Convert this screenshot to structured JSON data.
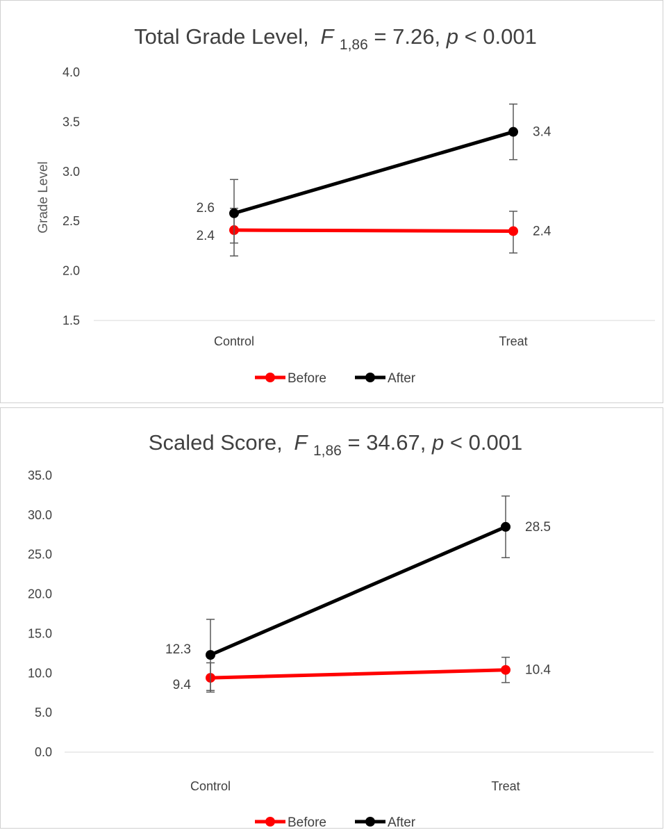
{
  "chart_data": [
    {
      "type": "line",
      "title": "Total Grade Level,",
      "title_stat_symbol": "F",
      "title_stat_subscript": "1,86",
      "title_stat_value": " = 7.26, ",
      "title_p_symbol": "p",
      "title_p_value": " < 0.001",
      "xlabel": "",
      "ylabel": "Grade Level",
      "categories": [
        "Control",
        "Treat"
      ],
      "ylim": [
        1.5,
        4.0
      ],
      "yticks": [
        "1.5",
        "2.0",
        "2.5",
        "3.0",
        "3.5",
        "4.0"
      ],
      "series": [
        {
          "name": "Before",
          "color": "#ff0000",
          "values": [
            2.41,
            2.4
          ],
          "error_low": [
            2.15,
            2.18
          ],
          "error_high": [
            2.63,
            2.6
          ],
          "labels": [
            "2.4",
            "2.4"
          ]
        },
        {
          "name": "After",
          "color": "#000000",
          "values": [
            2.58,
            3.4
          ],
          "error_low": [
            2.28,
            3.12
          ],
          "error_high": [
            2.92,
            3.68
          ],
          "labels": [
            "2.6",
            "3.4"
          ]
        }
      ],
      "grid": false,
      "legend_position": "bottom"
    },
    {
      "type": "line",
      "title": "Scaled Score,",
      "title_stat_symbol": "F",
      "title_stat_subscript": "1,86",
      "title_stat_value": "= 34.67, ",
      "title_p_symbol": "p",
      "title_p_value": " < 0.001",
      "xlabel": "",
      "ylabel": "",
      "categories": [
        "Control",
        "Treat"
      ],
      "ylim": [
        0,
        35
      ],
      "yticks": [
        "0.0",
        "5.0",
        "10.0",
        "15.0",
        "20.0",
        "25.0",
        "30.0",
        "35.0"
      ],
      "series": [
        {
          "name": "Before",
          "color": "#ff0000",
          "values": [
            9.4,
            10.4
          ],
          "error_low": [
            7.8,
            8.8
          ],
          "error_high": [
            11.3,
            12.0
          ],
          "labels": [
            "9.4",
            "10.4"
          ]
        },
        {
          "name": "After",
          "color": "#000000",
          "values": [
            12.3,
            28.5
          ],
          "error_low": [
            7.6,
            24.6
          ],
          "error_high": [
            16.8,
            32.4
          ],
          "labels": [
            "12.3",
            "28.5"
          ]
        }
      ],
      "grid": false,
      "legend_position": "bottom"
    }
  ]
}
